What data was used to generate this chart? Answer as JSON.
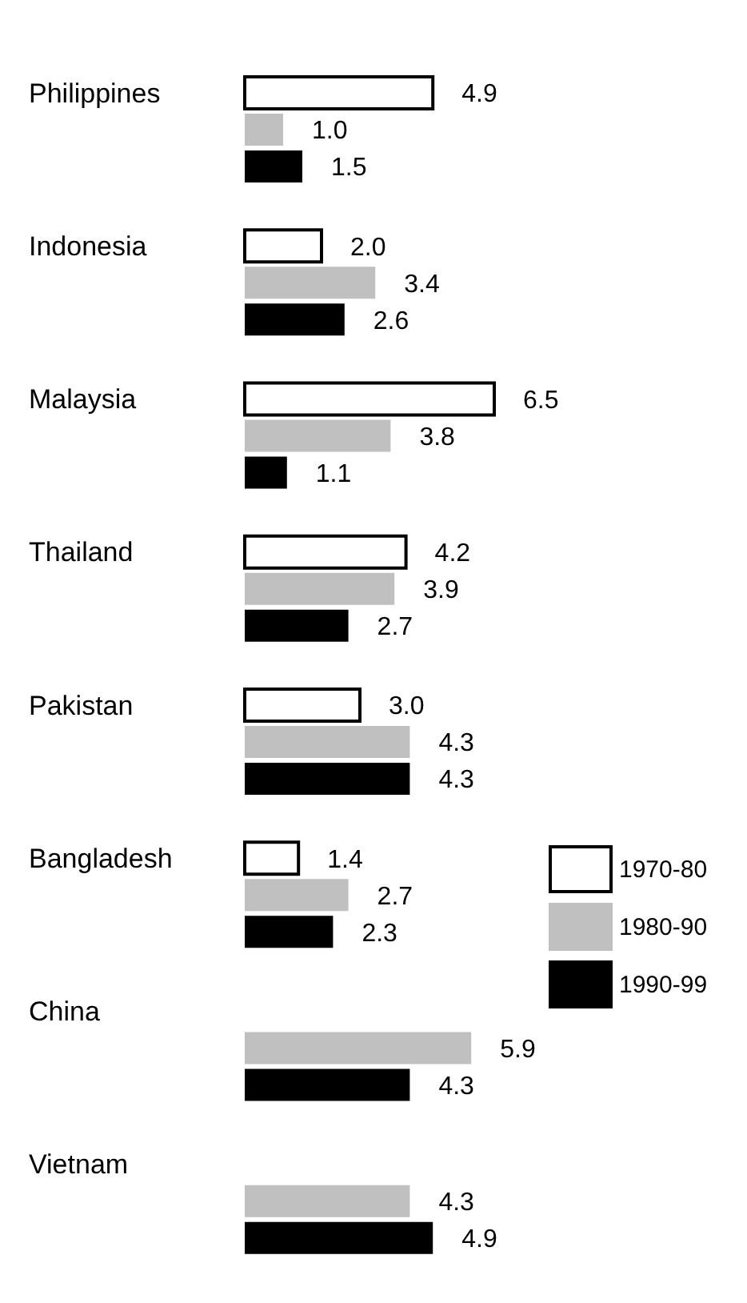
{
  "chart_data": {
    "type": "bar",
    "orientation": "horizontal",
    "categories": [
      "Philippines",
      "Indonesia",
      "Malaysia",
      "Thailand",
      "Pakistan",
      "Bangladesh",
      "China",
      "Vietnam"
    ],
    "series": [
      {
        "name": "1970-80",
        "color": "#ffffff",
        "values": [
          4.9,
          2.0,
          6.5,
          4.2,
          3.0,
          1.4,
          null,
          null
        ],
        "value_labels": [
          "4.9",
          "2.0",
          "6.5",
          "4.2",
          "3.0",
          "1.4",
          null,
          null
        ]
      },
      {
        "name": "1980-90",
        "color": "#c0c0c0",
        "values": [
          1.0,
          3.4,
          3.8,
          3.9,
          4.3,
          2.7,
          5.9,
          4.3
        ],
        "value_labels": [
          "1.0",
          "3.4",
          "3.8",
          "3.9",
          "4.3",
          "2.7",
          "5.9",
          "4.3"
        ]
      },
      {
        "name": "1990-99",
        "color": "#000000",
        "values": [
          1.5,
          2.6,
          1.1,
          2.7,
          4.3,
          2.3,
          4.3,
          4.9
        ],
        "value_labels": [
          "1.5",
          "2.6",
          "1.1",
          "2.7",
          "4.3",
          "2.3",
          "4.3",
          "4.9"
        ]
      }
    ],
    "legend": "right"
  }
}
